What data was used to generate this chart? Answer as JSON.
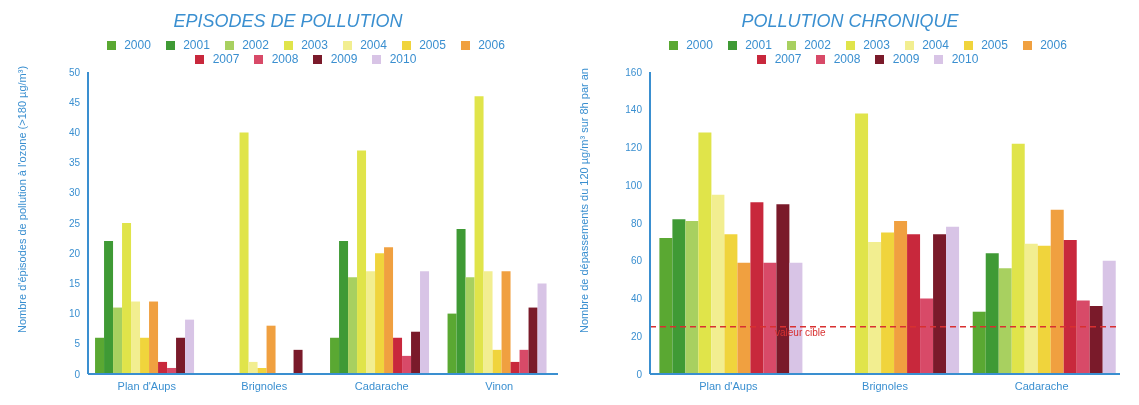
{
  "chart_data": [
    {
      "type": "bar",
      "title": "EPISODES DE POLLUTION",
      "ylabel": "Nombre d'épisodes de pollution à l'ozone (>180 µg/m³)",
      "categories": [
        "Plan d'Aups",
        "Brignoles",
        "Cadarache",
        "Vinon"
      ],
      "ylim": [
        0,
        50
      ],
      "yticks": [
        0,
        5,
        10,
        15,
        20,
        25,
        30,
        35,
        40,
        45,
        50
      ],
      "grid": false,
      "legend": "top",
      "series": [
        {
          "name": "2000",
          "color": "#5aa832",
          "values": [
            6,
            0,
            6,
            10
          ]
        },
        {
          "name": "2001",
          "color": "#3f9a35",
          "values": [
            22,
            0,
            22,
            24
          ]
        },
        {
          "name": "2002",
          "color": "#a8d060",
          "values": [
            11,
            0,
            16,
            16
          ]
        },
        {
          "name": "2003",
          "color": "#e0e44a",
          "values": [
            25,
            40,
            37,
            46
          ]
        },
        {
          "name": "2004",
          "color": "#f2ee90",
          "values": [
            12,
            2,
            17,
            17
          ]
        },
        {
          "name": "2005",
          "color": "#f0d43c",
          "values": [
            6,
            1,
            20,
            4
          ]
        },
        {
          "name": "2006",
          "color": "#f0a040",
          "values": [
            12,
            8,
            21,
            17
          ]
        },
        {
          "name": "2007",
          "color": "#c8283c",
          "values": [
            2,
            0,
            6,
            2
          ]
        },
        {
          "name": "2008",
          "color": "#d84a68",
          "values": [
            1,
            0,
            3,
            4
          ]
        },
        {
          "name": "2009",
          "color": "#7a1a2a",
          "values": [
            6,
            4,
            7,
            11
          ]
        },
        {
          "name": "2010",
          "color": "#d8c4e6",
          "values": [
            9,
            0,
            17,
            15
          ]
        }
      ]
    },
    {
      "type": "bar",
      "title": "POLLUTION CHRONIQUE",
      "ylabel": "Nombre de dépassements du 120 µg/m³ sur 8h par an",
      "categories": [
        "Plan d'Aups",
        "Brignoles",
        "Cadarache"
      ],
      "ylim": [
        0,
        160
      ],
      "yticks": [
        0,
        20,
        40,
        60,
        80,
        100,
        120,
        140,
        160
      ],
      "grid": false,
      "legend": "top",
      "ref_lines": [
        {
          "axis": "y",
          "value": 25,
          "label": "valeur cible",
          "color": "#d83030",
          "line_style": "dashed"
        }
      ],
      "series": [
        {
          "name": "2000",
          "color": "#5aa832",
          "values": [
            72,
            0,
            33
          ]
        },
        {
          "name": "2001",
          "color": "#3f9a35",
          "values": [
            82,
            0,
            64
          ]
        },
        {
          "name": "2002",
          "color": "#a8d060",
          "values": [
            81,
            0,
            56
          ]
        },
        {
          "name": "2003",
          "color": "#e0e44a",
          "values": [
            128,
            138,
            122
          ]
        },
        {
          "name": "2004",
          "color": "#f2ee90",
          "values": [
            95,
            70,
            69
          ]
        },
        {
          "name": "2005",
          "color": "#f0d43c",
          "values": [
            74,
            75,
            68
          ]
        },
        {
          "name": "2006",
          "color": "#f0a040",
          "values": [
            59,
            81,
            87
          ]
        },
        {
          "name": "2007",
          "color": "#c8283c",
          "values": [
            91,
            74,
            71
          ]
        },
        {
          "name": "2008",
          "color": "#d84a68",
          "values": [
            59,
            40,
            39
          ]
        },
        {
          "name": "2009",
          "color": "#7a1a2a",
          "values": [
            90,
            74,
            36
          ]
        },
        {
          "name": "2010",
          "color": "#d8c4e6",
          "values": [
            59,
            78,
            60
          ]
        }
      ]
    }
  ]
}
